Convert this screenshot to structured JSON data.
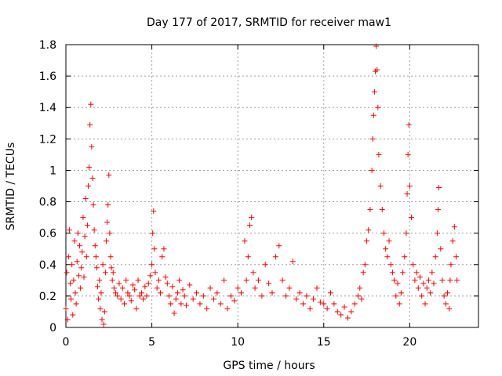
{
  "chart_data": {
    "type": "scatter",
    "title": "Day 177 of 2017, SRMTID for receiver maw1",
    "xlabel": "GPS time / hours",
    "ylabel": "SRMTID / TECUs",
    "xlim": [
      0,
      24
    ],
    "ylim": [
      0,
      1.8
    ],
    "xticks": [
      0,
      5,
      10,
      15,
      20
    ],
    "xtick_labels": [
      "0",
      "5",
      "10",
      "15",
      "20"
    ],
    "yticks": [
      0,
      0.2,
      0.4,
      0.6,
      0.8,
      1.0,
      1.2,
      1.4,
      1.6,
      1.8
    ],
    "ytick_labels": [
      "0",
      "0.2",
      "0.4",
      "0.6",
      "0.8",
      "1",
      "1.2",
      "1.4",
      "1.6",
      "1.8"
    ],
    "grid": true,
    "marker": "+",
    "marker_color": "#ff0000",
    "series": [
      {
        "name": "maw1",
        "points": [
          [
            0.0,
            0.12
          ],
          [
            0.05,
            0.35
          ],
          [
            0.1,
            0.05
          ],
          [
            0.15,
            0.45
          ],
          [
            0.2,
            0.62
          ],
          [
            0.25,
            0.28
          ],
          [
            0.3,
            0.18
          ],
          [
            0.35,
            0.4
          ],
          [
            0.4,
            0.08
          ],
          [
            0.45,
            0.3
          ],
          [
            0.5,
            0.55
          ],
          [
            0.55,
            0.22
          ],
          [
            0.6,
            0.15
          ],
          [
            0.65,
            0.42
          ],
          [
            0.7,
            0.6
          ],
          [
            0.75,
            0.33
          ],
          [
            0.8,
            0.52
          ],
          [
            0.85,
            0.25
          ],
          [
            0.9,
            0.38
          ],
          [
            0.95,
            0.48
          ],
          [
            1.0,
            0.7
          ],
          [
            1.05,
            0.32
          ],
          [
            1.1,
            0.58
          ],
          [
            1.15,
            0.82
          ],
          [
            1.2,
            0.45
          ],
          [
            1.25,
            0.65
          ],
          [
            1.3,
            0.9
          ],
          [
            1.35,
            1.02
          ],
          [
            1.4,
            1.29
          ],
          [
            1.45,
            1.42
          ],
          [
            1.5,
            1.15
          ],
          [
            1.55,
            0.95
          ],
          [
            1.6,
            0.78
          ],
          [
            1.65,
            0.62
          ],
          [
            1.7,
            0.52
          ],
          [
            1.75,
            0.45
          ],
          [
            1.8,
            0.38
          ],
          [
            1.85,
            0.26
          ],
          [
            1.9,
            0.18
          ],
          [
            1.95,
            0.3
          ],
          [
            2.0,
            0.12
          ],
          [
            2.05,
            0.22
          ],
          [
            2.1,
            0.05
          ],
          [
            2.15,
            0.4
          ],
          [
            2.2,
            0.02
          ],
          [
            2.25,
            0.1
          ],
          [
            2.3,
            0.35
          ],
          [
            2.35,
            0.55
          ],
          [
            2.4,
            0.67
          ],
          [
            2.45,
            0.78
          ],
          [
            2.5,
            0.97
          ],
          [
            2.55,
            0.6
          ],
          [
            2.6,
            0.45
          ],
          [
            2.65,
            0.38
          ],
          [
            2.7,
            0.3
          ],
          [
            2.75,
            0.35
          ],
          [
            2.8,
            0.25
          ],
          [
            2.9,
            0.22
          ],
          [
            3.0,
            0.2
          ],
          [
            3.1,
            0.28
          ],
          [
            3.2,
            0.18
          ],
          [
            3.3,
            0.25
          ],
          [
            3.4,
            0.15
          ],
          [
            3.5,
            0.3
          ],
          [
            3.6,
            0.22
          ],
          [
            3.7,
            0.2
          ],
          [
            3.8,
            0.17
          ],
          [
            3.9,
            0.27
          ],
          [
            4.0,
            0.24
          ],
          [
            4.1,
            0.12
          ],
          [
            4.2,
            0.3
          ],
          [
            4.3,
            0.2
          ],
          [
            4.4,
            0.22
          ],
          [
            4.5,
            0.18
          ],
          [
            4.6,
            0.26
          ],
          [
            4.7,
            0.2
          ],
          [
            4.8,
            0.28
          ],
          [
            4.9,
            0.33
          ],
          [
            5.0,
            0.4
          ],
          [
            5.05,
            0.6
          ],
          [
            5.1,
            0.74
          ],
          [
            5.15,
            0.5
          ],
          [
            5.2,
            0.35
          ],
          [
            5.3,
            0.25
          ],
          [
            5.4,
            0.3
          ],
          [
            5.5,
            0.22
          ],
          [
            5.6,
            0.45
          ],
          [
            5.7,
            0.5
          ],
          [
            5.8,
            0.32
          ],
          [
            5.9,
            0.28
          ],
          [
            6.0,
            0.2
          ],
          [
            6.1,
            0.15
          ],
          [
            6.2,
            0.26
          ],
          [
            6.3,
            0.09
          ],
          [
            6.4,
            0.18
          ],
          [
            6.5,
            0.22
          ],
          [
            6.6,
            0.3
          ],
          [
            6.7,
            0.15
          ],
          [
            6.8,
            0.24
          ],
          [
            6.9,
            0.2
          ],
          [
            7.0,
            0.14
          ],
          [
            7.2,
            0.27
          ],
          [
            7.4,
            0.18
          ],
          [
            7.6,
            0.22
          ],
          [
            7.8,
            0.15
          ],
          [
            8.0,
            0.2
          ],
          [
            8.2,
            0.12
          ],
          [
            8.4,
            0.25
          ],
          [
            8.6,
            0.18
          ],
          [
            8.8,
            0.22
          ],
          [
            9.0,
            0.15
          ],
          [
            9.2,
            0.3
          ],
          [
            9.4,
            0.12
          ],
          [
            9.6,
            0.2
          ],
          [
            9.8,
            0.17
          ],
          [
            10.0,
            0.25
          ],
          [
            10.2,
            0.22
          ],
          [
            10.4,
            0.55
          ],
          [
            10.5,
            0.3
          ],
          [
            10.6,
            0.45
          ],
          [
            10.7,
            0.65
          ],
          [
            10.8,
            0.7
          ],
          [
            10.9,
            0.35
          ],
          [
            11.0,
            0.25
          ],
          [
            11.2,
            0.3
          ],
          [
            11.4,
            0.2
          ],
          [
            11.6,
            0.4
          ],
          [
            11.8,
            0.28
          ],
          [
            12.0,
            0.22
          ],
          [
            12.2,
            0.45
          ],
          [
            12.4,
            0.52
          ],
          [
            12.6,
            0.3
          ],
          [
            12.8,
            0.2
          ],
          [
            13.0,
            0.25
          ],
          [
            13.2,
            0.42
          ],
          [
            13.4,
            0.18
          ],
          [
            13.6,
            0.22
          ],
          [
            13.8,
            0.15
          ],
          [
            14.0,
            0.2
          ],
          [
            14.2,
            0.12
          ],
          [
            14.4,
            0.18
          ],
          [
            14.6,
            0.25
          ],
          [
            14.8,
            0.16
          ],
          [
            15.0,
            0.15
          ],
          [
            15.2,
            0.12
          ],
          [
            15.4,
            0.22
          ],
          [
            15.6,
            0.15
          ],
          [
            15.8,
            0.1
          ],
          [
            16.0,
            0.08
          ],
          [
            16.2,
            0.13
          ],
          [
            16.4,
            0.06
          ],
          [
            16.6,
            0.1
          ],
          [
            16.8,
            0.15
          ],
          [
            17.0,
            0.2
          ],
          [
            17.1,
            0.25
          ],
          [
            17.2,
            0.18
          ],
          [
            17.3,
            0.35
          ],
          [
            17.4,
            0.4
          ],
          [
            17.5,
            0.55
          ],
          [
            17.6,
            0.62
          ],
          [
            17.7,
            0.75
          ],
          [
            17.8,
            1.0
          ],
          [
            17.85,
            1.2
          ],
          [
            17.9,
            1.35
          ],
          [
            17.95,
            1.5
          ],
          [
            18.0,
            1.63
          ],
          [
            18.05,
            1.79
          ],
          [
            18.1,
            1.64
          ],
          [
            18.15,
            1.4
          ],
          [
            18.2,
            1.1
          ],
          [
            18.3,
            0.9
          ],
          [
            18.4,
            0.75
          ],
          [
            18.5,
            0.6
          ],
          [
            18.6,
            0.5
          ],
          [
            18.7,
            0.45
          ],
          [
            18.8,
            0.55
          ],
          [
            18.9,
            0.4
          ],
          [
            19.0,
            0.35
          ],
          [
            19.1,
            0.3
          ],
          [
            19.2,
            0.2
          ],
          [
            19.3,
            0.28
          ],
          [
            19.4,
            0.15
          ],
          [
            19.5,
            0.22
          ],
          [
            19.6,
            0.35
          ],
          [
            19.7,
            0.45
          ],
          [
            19.8,
            0.6
          ],
          [
            19.85,
            0.85
          ],
          [
            19.9,
            1.1
          ],
          [
            19.95,
            1.29
          ],
          [
            20.0,
            0.9
          ],
          [
            20.1,
            0.7
          ],
          [
            20.2,
            0.4
          ],
          [
            20.3,
            0.3
          ],
          [
            20.4,
            0.35
          ],
          [
            20.5,
            0.25
          ],
          [
            20.6,
            0.32
          ],
          [
            20.7,
            0.2
          ],
          [
            20.8,
            0.28
          ],
          [
            20.9,
            0.15
          ],
          [
            21.0,
            0.25
          ],
          [
            21.1,
            0.3
          ],
          [
            21.2,
            0.22
          ],
          [
            21.3,
            0.35
          ],
          [
            21.4,
            0.28
          ],
          [
            21.5,
            0.45
          ],
          [
            21.6,
            0.6
          ],
          [
            21.65,
            0.75
          ],
          [
            21.7,
            0.89
          ],
          [
            21.8,
            0.5
          ],
          [
            21.9,
            0.3
          ],
          [
            22.0,
            0.2
          ],
          [
            22.1,
            0.15
          ],
          [
            22.2,
            0.22
          ],
          [
            22.3,
            0.12
          ],
          [
            22.35,
            0.3
          ],
          [
            22.4,
            0.4
          ],
          [
            22.5,
            0.55
          ],
          [
            22.6,
            0.64
          ],
          [
            22.7,
            0.45
          ],
          [
            22.75,
            0.3
          ]
        ]
      }
    ]
  }
}
